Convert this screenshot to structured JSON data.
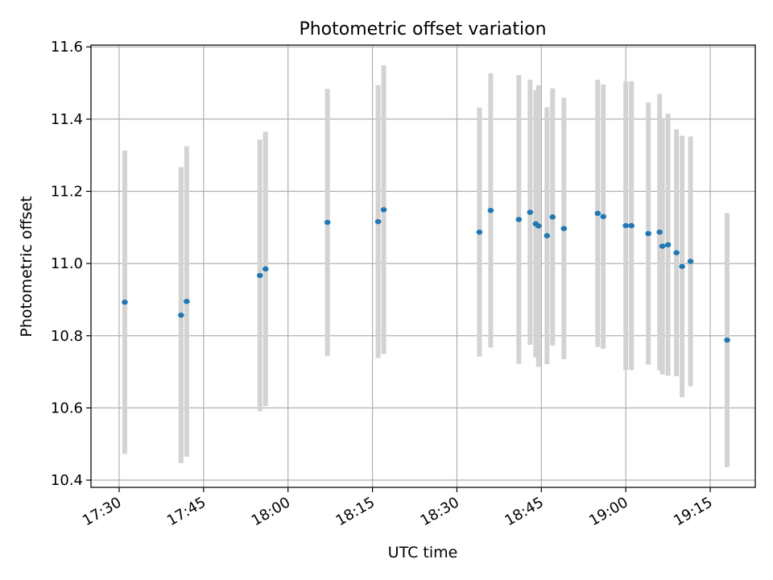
{
  "chart_data": {
    "type": "scatter",
    "title": "Photometric offset variation",
    "xlabel": "UTC time",
    "ylabel": "Photometric offset",
    "xlim": [
      "17:25",
      "19:23"
    ],
    "ylim": [
      10.38,
      11.605
    ],
    "grid": true,
    "x_ticks": [
      "17:30",
      "17:45",
      "18:00",
      "18:15",
      "18:30",
      "18:45",
      "19:00",
      "19:15"
    ],
    "y_ticks": [
      "10.4",
      "10.6",
      "10.8",
      "11.0",
      "11.2",
      "11.4",
      "11.6"
    ],
    "colors": {
      "point": "#1f77b4",
      "errorbar": "#d3d3d3",
      "grid": "#b0b0b0"
    },
    "series": [
      {
        "points": [
          {
            "x": "17:31",
            "y": 10.893,
            "yerr": 0.42
          },
          {
            "x": "17:41",
            "y": 10.857,
            "yerr": 0.41
          },
          {
            "x": "17:42",
            "y": 10.895,
            "yerr": 0.43
          },
          {
            "x": "17:55",
            "y": 10.967,
            "yerr": 0.376
          },
          {
            "x": "17:56",
            "y": 10.985,
            "yerr": 0.38
          },
          {
            "x": "18:07",
            "y": 11.114,
            "yerr": 0.37
          },
          {
            "x": "18:16",
            "y": 11.116,
            "yerr": 0.378
          },
          {
            "x": "18:17",
            "y": 11.149,
            "yerr": 0.4
          },
          {
            "x": "18:34",
            "y": 11.087,
            "yerr": 0.345
          },
          {
            "x": "18:36",
            "y": 11.147,
            "yerr": 0.38
          },
          {
            "x": "18:41",
            "y": 11.122,
            "yerr": 0.4
          },
          {
            "x": "18:43",
            "y": 11.142,
            "yerr": 0.367
          },
          {
            "x": "18:44",
            "y": 11.11,
            "yerr": 0.37
          },
          {
            "x": "18:44.5",
            "y": 11.104,
            "yerr": 0.39
          },
          {
            "x": "18:46",
            "y": 11.077,
            "yerr": 0.356
          },
          {
            "x": "18:47",
            "y": 11.129,
            "yerr": 0.356
          },
          {
            "x": "18:49",
            "y": 11.097,
            "yerr": 0.362
          },
          {
            "x": "18:55",
            "y": 11.139,
            "yerr": 0.37
          },
          {
            "x": "18:56",
            "y": 11.13,
            "yerr": 0.366
          },
          {
            "x": "19:00",
            "y": 11.105,
            "yerr": 0.4
          },
          {
            "x": "19:01",
            "y": 11.105,
            "yerr": 0.4
          },
          {
            "x": "19:04",
            "y": 11.083,
            "yerr": 0.363
          },
          {
            "x": "19:06",
            "y": 11.087,
            "yerr": 0.383
          },
          {
            "x": "19:06.5",
            "y": 11.048,
            "yerr": 0.355
          },
          {
            "x": "19:07.5",
            "y": 11.052,
            "yerr": 0.363
          },
          {
            "x": "19:09",
            "y": 11.03,
            "yerr": 0.342
          },
          {
            "x": "19:10",
            "y": 10.992,
            "yerr": 0.362
          },
          {
            "x": "19:11.5",
            "y": 11.006,
            "yerr": 0.346
          },
          {
            "x": "19:18",
            "y": 10.788,
            "yerr": 0.352
          }
        ]
      }
    ]
  }
}
